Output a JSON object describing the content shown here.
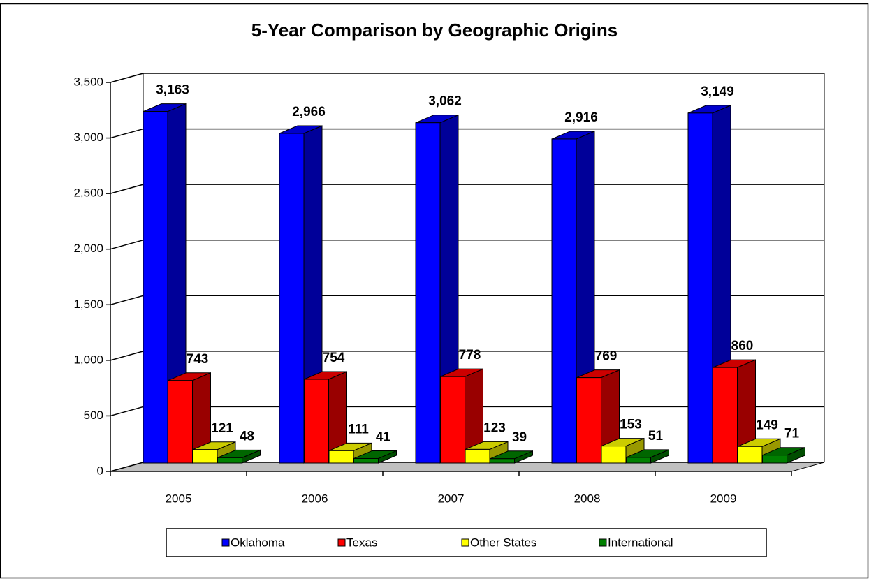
{
  "chart_data": {
    "type": "bar3d",
    "title": "5-Year Comparison by Geographic Origins",
    "categories": [
      "2005",
      "2006",
      "2007",
      "2008",
      "2009"
    ],
    "series": [
      {
        "name": "Oklahoma",
        "color": "#0000ff",
        "values": [
          3163,
          2966,
          3062,
          2916,
          3149
        ],
        "value_labels": [
          "3,163",
          "2,966",
          "3,062",
          "2,916",
          "3,149"
        ]
      },
      {
        "name": "Texas",
        "color": "#ff0000",
        "values": [
          743,
          754,
          778,
          769,
          860
        ]
      },
      {
        "name": "Other States",
        "color": "#ffff00",
        "values": [
          121,
          111,
          123,
          153,
          149
        ]
      },
      {
        "name": "International",
        "color": "#008000",
        "values": [
          48,
          41,
          39,
          51,
          71
        ]
      }
    ],
    "ylim": [
      0,
      3500
    ],
    "yticks": [
      0,
      500,
      {
        "value": 1000,
        "label": "1,000"
      },
      {
        "value": 1500,
        "label": "1,500"
      },
      {
        "value": 2000,
        "label": "2,000"
      },
      {
        "value": 2500,
        "label": "2,500"
      },
      {
        "value": 3000,
        "label": "3,000"
      },
      {
        "value": 3500,
        "label": "3,500"
      }
    ],
    "grid": true,
    "legend": "bottom"
  }
}
